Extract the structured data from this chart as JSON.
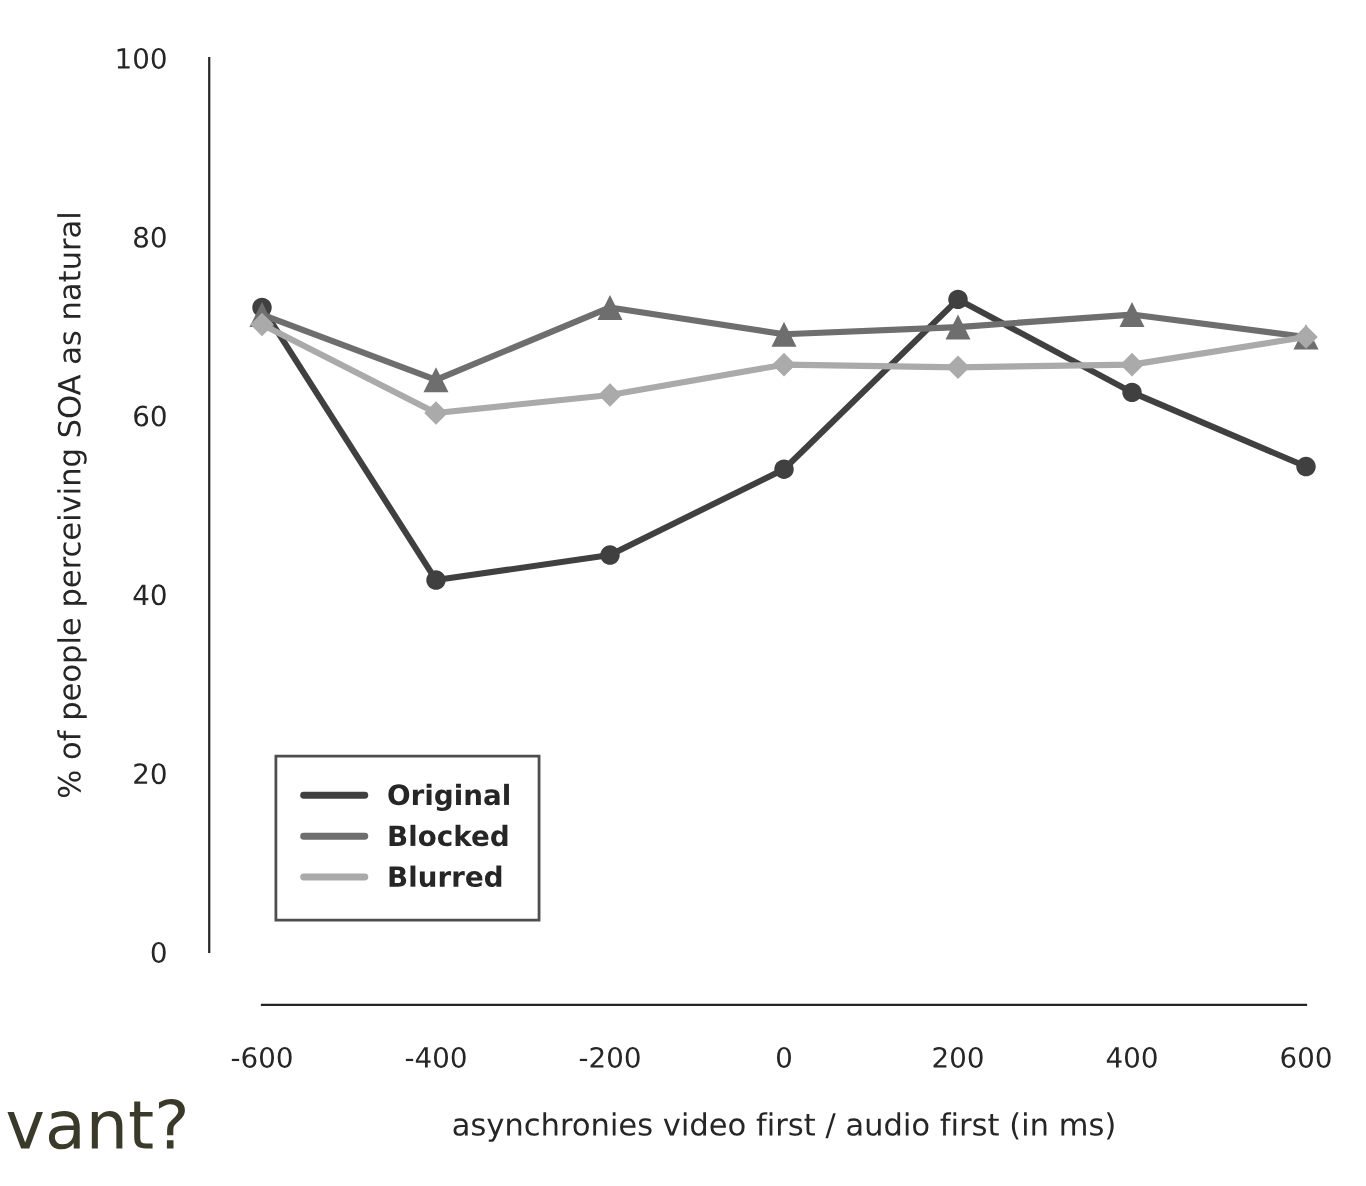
{
  "chart_data": {
    "type": "line",
    "xlabel": "asynchronies video first / audio first (in ms)",
    "ylabel": "% of people perceiving SOA as natural",
    "x": [
      -600,
      -400,
      -200,
      0,
      200,
      400,
      600
    ],
    "series": [
      {
        "name": "Original",
        "color": "#404040",
        "marker": "circle",
        "values": [
          72.1,
          41.6,
          44.4,
          54.0,
          73.0,
          62.6,
          54.3
        ]
      },
      {
        "name": "Blocked",
        "color": "#6e6e6e",
        "marker": "triangle",
        "values": [
          71.3,
          64.0,
          72.1,
          69.1,
          69.9,
          71.3,
          68.8
        ]
      },
      {
        "name": "Blurred",
        "color": "#aaaaaa",
        "marker": "diamond",
        "values": [
          70.2,
          60.3,
          62.3,
          65.7,
          65.4,
          65.7,
          68.8
        ]
      }
    ],
    "xlim": [
      -600,
      600
    ],
    "ylim": [
      0,
      100
    ],
    "xticks": [
      -600,
      -400,
      -200,
      0,
      200,
      400,
      600
    ],
    "yticks": [
      0,
      20,
      40,
      60,
      80,
      100
    ],
    "grid": false,
    "legend": "bottom left",
    "line_style": "solid",
    "annotations": [
      "vant?"
    ]
  }
}
